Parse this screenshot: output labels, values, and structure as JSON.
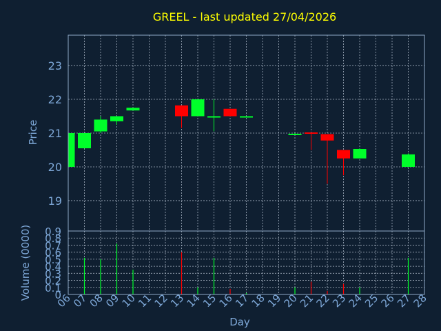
{
  "chart_data": {
    "type": "candlestick",
    "title": "GREEL - last updated 27/04/2026",
    "xlabel": "Day",
    "price_panel": {
      "ylabel": "Price",
      "ylim": [
        18.1,
        23.9
      ],
      "yticks": [
        "19",
        "20",
        "21",
        "22",
        "23"
      ]
    },
    "volume_panel": {
      "ylabel": "Volume (0000)",
      "ylim": [
        0,
        0.9
      ],
      "yticks": [
        "0",
        "0.1",
        "0.2",
        "0.3",
        "0.4",
        "0.5",
        "0.6",
        "0.7",
        "0.8",
        "0.9"
      ]
    },
    "xticks": [
      "06",
      "07",
      "08",
      "09",
      "10",
      "11",
      "12",
      "13",
      "14",
      "15",
      "16",
      "17",
      "18",
      "19",
      "20",
      "21",
      "22",
      "23",
      "24",
      "25",
      "26",
      "27",
      "28"
    ],
    "grid": true,
    "colors": {
      "up": "#00ff2a",
      "down": "#ff0000",
      "title": "#ffff00",
      "axis_text": "#7ea8d8",
      "background": "#0f1f31"
    },
    "candles": [
      {
        "day": "06",
        "open": 20.0,
        "high": 21.0,
        "low": 20.0,
        "close": 21.0,
        "volume": 0.0
      },
      {
        "day": "07",
        "open": 20.55,
        "high": 21.0,
        "low": 20.55,
        "close": 21.0,
        "volume": 0.52
      },
      {
        "day": "08",
        "open": 21.05,
        "high": 21.5,
        "low": 21.0,
        "close": 21.4,
        "volume": 0.5
      },
      {
        "day": "09",
        "open": 21.35,
        "high": 21.5,
        "low": 21.25,
        "close": 21.5,
        "volume": 0.72
      },
      {
        "day": "10",
        "open": 21.67,
        "high": 21.75,
        "low": 21.67,
        "close": 21.75,
        "volume": 0.35
      },
      {
        "day": "13",
        "open": 21.82,
        "high": 21.82,
        "low": 21.15,
        "close": 21.5,
        "volume": 0.6
      },
      {
        "day": "14",
        "open": 21.5,
        "high": 22.0,
        "low": 21.5,
        "close": 22.0,
        "volume": 0.1
      },
      {
        "day": "15",
        "open": 21.5,
        "high": 22.0,
        "low": 21.05,
        "close": 21.5,
        "volume": 0.52
      },
      {
        "day": "16",
        "open": 21.72,
        "high": 21.72,
        "low": 21.5,
        "close": 21.5,
        "volume": 0.08
      },
      {
        "day": "17",
        "open": 21.48,
        "high": 21.5,
        "low": 21.48,
        "close": 21.5,
        "volume": 0.02
      },
      {
        "day": "20",
        "open": 20.95,
        "high": 21.0,
        "low": 20.95,
        "close": 20.98,
        "volume": 0.1
      },
      {
        "day": "21",
        "open": 21.02,
        "high": 21.02,
        "low": 20.5,
        "close": 21.0,
        "volume": 0.18
      },
      {
        "day": "22",
        "open": 20.97,
        "high": 20.97,
        "low": 19.5,
        "close": 20.78,
        "volume": 0.05
      },
      {
        "day": "23",
        "open": 20.5,
        "high": 20.5,
        "low": 19.75,
        "close": 20.25,
        "volume": 0.15
      },
      {
        "day": "24",
        "open": 20.25,
        "high": 20.55,
        "low": 20.25,
        "close": 20.53,
        "volume": 0.1
      },
      {
        "day": "27",
        "open": 20.0,
        "high": 20.4,
        "low": 20.0,
        "close": 20.37,
        "volume": 0.52
      }
    ]
  }
}
